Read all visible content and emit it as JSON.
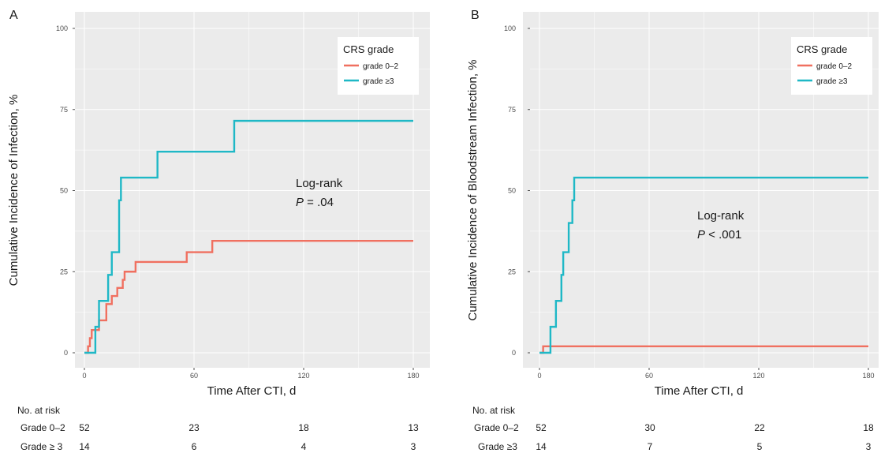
{
  "colors": {
    "panel_bg": "#ebebeb",
    "grid": "#ffffff",
    "series_low": "#f07060",
    "series_high": "#1fb8c6"
  },
  "chart_data": [
    {
      "type": "line",
      "step": true,
      "panel": "A",
      "xlabel": "Time After CTI, d",
      "ylabel": "Cumulative Incidence of Infection, %",
      "xlim": [
        0,
        180
      ],
      "ylim": [
        0,
        100
      ],
      "xticks": [
        "0",
        "60",
        "120",
        "180"
      ],
      "yticks": [
        "0",
        "25",
        "50",
        "75",
        "100"
      ],
      "grid": true,
      "legend": {
        "title": "CRS grade",
        "position": "top-right"
      },
      "annotation": {
        "line1": "Log-rank",
        "p_symbol": "P",
        "p_rest": " = .04"
      },
      "series": [
        {
          "name": "grade 0–2",
          "color": "#f07060",
          "x": [
            0,
            2,
            3,
            4,
            5,
            8,
            12,
            15,
            18,
            21,
            22,
            28,
            56,
            70,
            180
          ],
          "y": [
            0,
            2,
            4.5,
            7,
            7,
            10,
            15,
            17.5,
            20,
            22.5,
            25,
            28,
            31,
            34.5,
            34.5
          ]
        },
        {
          "name": "grade ≥3",
          "color": "#1fb8c6",
          "x": [
            0,
            6,
            8,
            13,
            15,
            19,
            20,
            40,
            82,
            180
          ],
          "y": [
            0,
            8,
            16,
            24,
            31,
            47,
            54,
            62,
            71.5,
            71.5
          ]
        }
      ],
      "risk_table": {
        "header": "No. at risk",
        "rows": [
          {
            "label": "Grade 0–2",
            "values": [
              "52",
              "23",
              "18",
              "13"
            ]
          },
          {
            "label": "Grade ≥ 3",
            "values": [
              "14",
              "6",
              "4",
              "3"
            ]
          }
        ]
      }
    },
    {
      "type": "line",
      "step": true,
      "panel": "B",
      "xlabel": "Time After CTI, d",
      "ylabel": "Cumulative Incidence of Bloodstream Infection, %",
      "xlim": [
        0,
        180
      ],
      "ylim": [
        0,
        100
      ],
      "xticks": [
        "0",
        "60",
        "120",
        "180"
      ],
      "yticks": [
        "0",
        "25",
        "50",
        "75",
        "100"
      ],
      "grid": true,
      "legend": {
        "title": "CRS grade",
        "position": "top-right"
      },
      "annotation": {
        "line1": "Log-rank",
        "p_symbol": "P",
        "p_rest": " < .001"
      },
      "series": [
        {
          "name": "grade 0–2",
          "color": "#f07060",
          "x": [
            0,
            2,
            180
          ],
          "y": [
            0,
            2,
            2
          ]
        },
        {
          "name": "grade ≥3",
          "color": "#1fb8c6",
          "x": [
            0,
            6,
            9,
            12,
            13,
            16,
            18,
            19,
            180
          ],
          "y": [
            0,
            8,
            16,
            24,
            31,
            40,
            47,
            54,
            54
          ]
        }
      ],
      "risk_table": {
        "header": "No. at risk",
        "rows": [
          {
            "label": "Grade 0–2",
            "values": [
              "52",
              "30",
              "22",
              "18"
            ]
          },
          {
            "label": "Grade ≥3",
            "values": [
              "14",
              "7",
              "5",
              "3"
            ]
          }
        ]
      }
    }
  ]
}
